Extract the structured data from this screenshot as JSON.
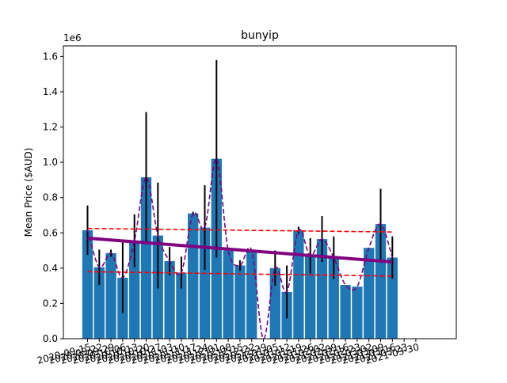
{
  "chart_data": {
    "type": "bar",
    "title": "bunyip",
    "xlabel": "",
    "ylabel": "Mean Price ($AUD)",
    "y_scale_label": "1e6",
    "ylim": [
      0,
      1.66
    ],
    "yticks": [
      0.0,
      0.2,
      0.4,
      0.6,
      0.8,
      1.0,
      1.2,
      1.4,
      1.6
    ],
    "ytick_labels": [
      "0.0",
      "0.2",
      "0.4",
      "0.6",
      "0.8",
      "1.0",
      "1.2",
      "1.4",
      "1.6"
    ],
    "categories": [
      "2020-09-15",
      "2020-09-22",
      "2020-09-29",
      "2020-10-06",
      "2020-10-13",
      "2020-10-20",
      "2020-10-27",
      "2020-11-03",
      "2020-11-10",
      "2020-11-17",
      "2020-11-24",
      "2020-12-01",
      "2020-12-08",
      "2020-12-15",
      "2020-12-22",
      "2020-12-29",
      "2021-01-05",
      "2021-01-12",
      "2021-01-19",
      "2021-01-26",
      "2021-02-02",
      "2021-02-09",
      "2021-02-16",
      "2021-02-23",
      "2021-03-02",
      "2021-03-09",
      "2021-03-16",
      "2021-03-23",
      "2021-03-30"
    ],
    "values": [
      0.615,
      0.405,
      0.485,
      0.345,
      0.555,
      0.915,
      0.585,
      0.44,
      0.375,
      0.71,
      0.63,
      1.02,
      0.5,
      0.415,
      0.5,
      0.0,
      0.4,
      0.265,
      0.615,
      0.47,
      0.565,
      0.46,
      0.305,
      0.295,
      0.515,
      0.65,
      0.46,
      null,
      null
    ],
    "error": [
      0.14,
      0.1,
      0.02,
      0.2,
      0.15,
      0.37,
      0.3,
      0.08,
      0.09,
      0.01,
      0.24,
      0.56,
      0.0,
      0.03,
      0.0,
      0.0,
      0.1,
      0.15,
      0.02,
      0.1,
      0.13,
      0.12,
      0.0,
      0.0,
      0.0,
      0.2,
      0.12,
      null,
      null
    ],
    "bar_color": "#1f77b4",
    "interpolation_color": "#800080",
    "trend": {
      "start": 0.57,
      "end": 0.435,
      "color": "#800080"
    },
    "bounds_upper": {
      "start": 0.625,
      "end": 0.605,
      "color": "#ff0000"
    },
    "bounds_lower": {
      "start": 0.38,
      "end": 0.355,
      "color": "#ff0000"
    },
    "grid": false
  }
}
